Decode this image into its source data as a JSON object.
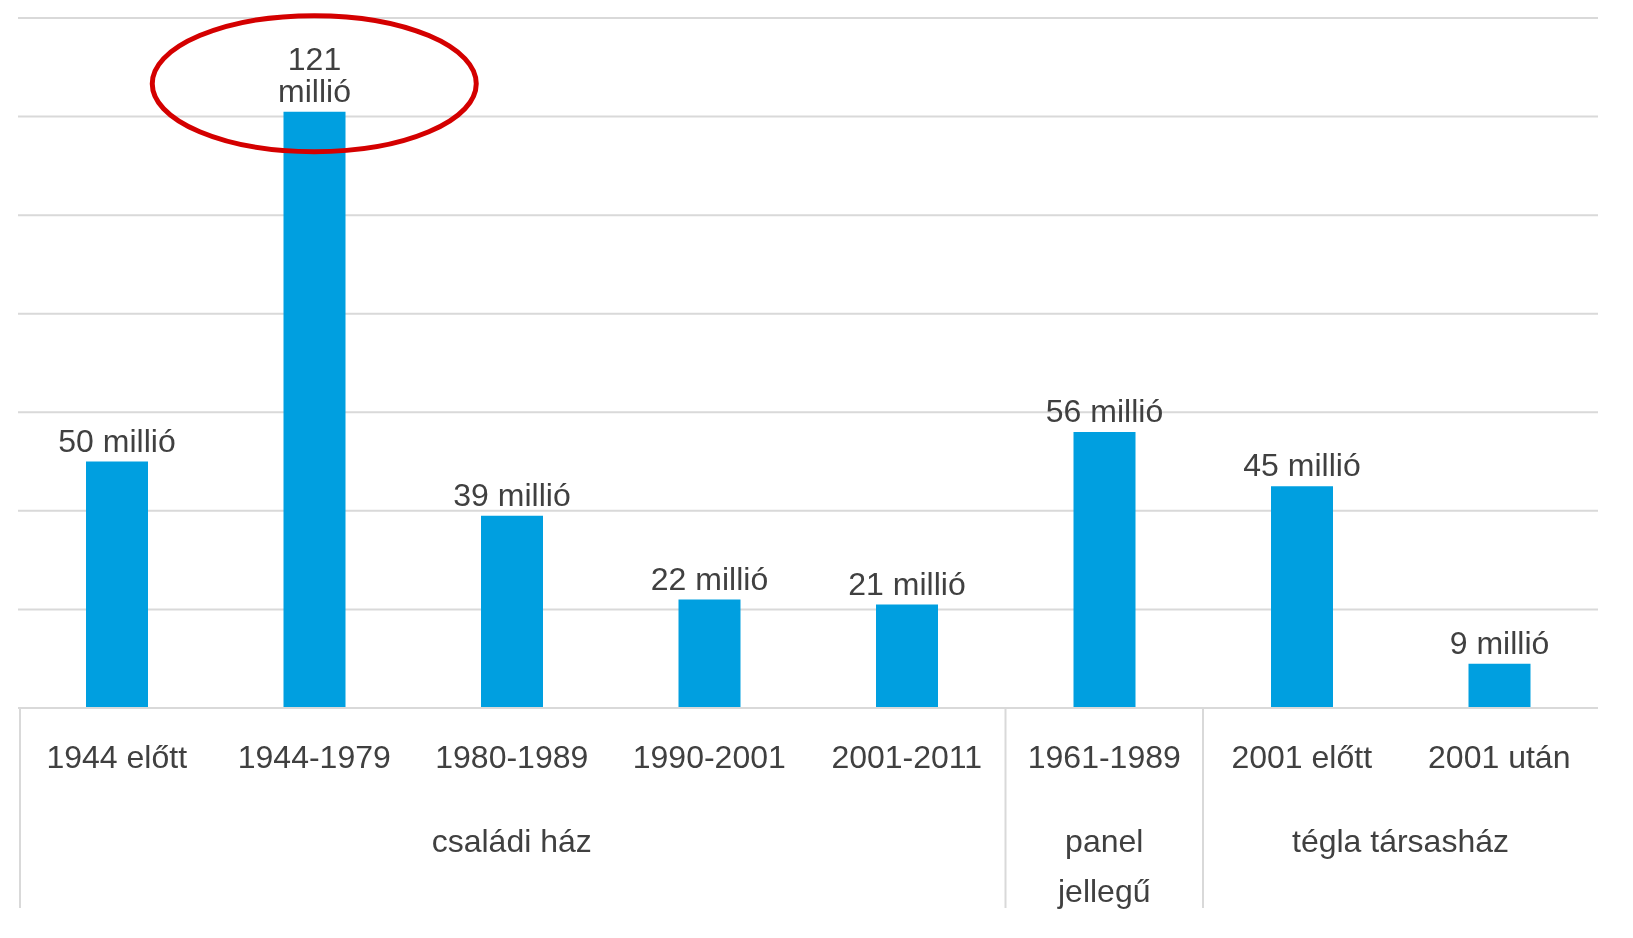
{
  "chart_data": {
    "type": "bar",
    "categories": [
      "1944 előtt",
      "1944-1979",
      "1980-1989",
      "1990-2001",
      "2001-2011",
      "1961-1989",
      "2001 előtt",
      "2001 után"
    ],
    "values": [
      50,
      121,
      39,
      22,
      21,
      56,
      45,
      9
    ],
    "value_labels": [
      "50 millió",
      "121 millió",
      "39 millió",
      "22 millió",
      "21 millió",
      "56 millió",
      "45 millió",
      "9 millió"
    ],
    "color": "#009fe0",
    "ylim": [
      0,
      140
    ],
    "yticks": [
      {
        "value": 0,
        "label": null
      },
      {
        "value": 20,
        "label": null
      },
      {
        "value": 40,
        "label": null
      },
      {
        "value": 60,
        "label": null
      },
      {
        "value": 80,
        "label": null
      },
      {
        "value": 100,
        "label": null
      },
      {
        "value": 120,
        "label": null
      },
      {
        "value": 140,
        "label": null
      }
    ],
    "tick_labels": "x",
    "grid": "y",
    "annotations": [
      "családi ház",
      "panel jellegű",
      "tégla társasház"
    ]
  }
}
